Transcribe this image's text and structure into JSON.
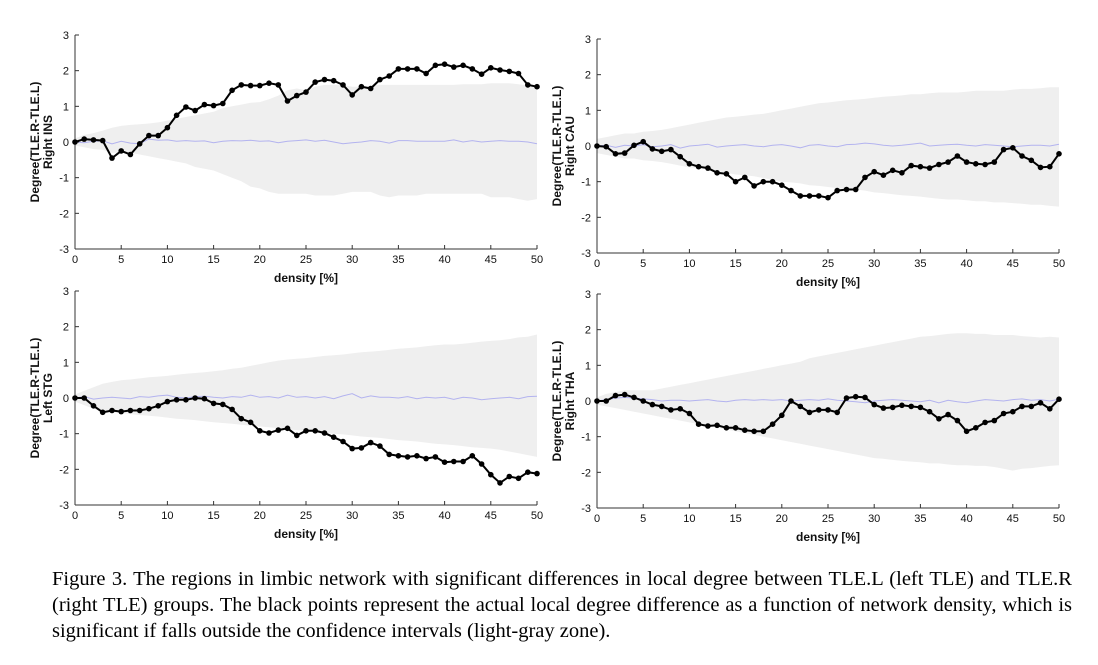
{
  "caption": "Figure 3. The regions in limbic network with significant differences in local degree between TLE.L (left TLE) and TLE.R (right TLE) groups. The black points represent the actual local degree difference as a function of network density, which is significant if falls outside the confidence intervals (light-gray zone).",
  "colors": {
    "ci_band": "#efefef",
    "null_line": "#b3b3ef",
    "observed": "#000000",
    "axis": "#333333"
  },
  "chart_data": [
    {
      "type": "line",
      "panel": "top-left",
      "region": "Right INS",
      "xlabel": "density [%]",
      "ylabel": "Degree(TLE.R-TLE.L)",
      "xlim": [
        0,
        50
      ],
      "ylim": [
        -3,
        3
      ],
      "xticks": [
        0,
        5,
        10,
        15,
        20,
        25,
        30,
        35,
        40,
        45,
        50
      ],
      "yticks": [
        -3,
        -2,
        -1,
        0,
        1,
        2,
        3
      ],
      "x": [
        0,
        1,
        2,
        3,
        4,
        5,
        6,
        7,
        8,
        9,
        10,
        11,
        12,
        13,
        14,
        15,
        16,
        17,
        18,
        19,
        20,
        21,
        22,
        23,
        24,
        25,
        26,
        27,
        28,
        29,
        30,
        31,
        32,
        33,
        34,
        35,
        36,
        37,
        38,
        39,
        40,
        41,
        42,
        43,
        44,
        45,
        46,
        47,
        48,
        49,
        50
      ],
      "observed": [
        0,
        0.08,
        0.06,
        0.04,
        -0.45,
        -0.25,
        -0.35,
        -0.05,
        0.18,
        0.18,
        0.4,
        0.75,
        0.98,
        0.88,
        1.05,
        1.02,
        1.08,
        1.45,
        1.6,
        1.58,
        1.58,
        1.65,
        1.6,
        1.15,
        1.3,
        1.4,
        1.68,
        1.75,
        1.72,
        1.6,
        1.32,
        1.55,
        1.5,
        1.75,
        1.85,
        2.05,
        2.05,
        2.05,
        1.92,
        2.15,
        2.18,
        2.1,
        2.15,
        2.05,
        1.9,
        2.08,
        2.02,
        1.98,
        1.92,
        1.6,
        1.55
      ],
      "null_mean": [
        0,
        -0.02,
        0.02,
        0.03,
        -0.05,
        0.02,
        -0.03,
        -0.05,
        0.08,
        0.05,
        0.06,
        0.02,
        0.04,
        0.02,
        0.03,
        -0.02,
        0.02,
        0.04,
        0.03,
        0.05,
        0.02,
        0.03,
        -0.02,
        0.02,
        0.04,
        0.06,
        0.02,
        0.05,
        0,
        -0.05,
        -0.02,
        0,
        0.04,
        0.02,
        -0.03,
        0.04,
        0.04,
        0.02,
        0.02,
        0.02,
        0.02,
        0.06,
        0,
        0.04,
        0,
        0.02,
        0.04,
        0.02,
        0.02,
        0,
        -0.05
      ],
      "ci_upper": [
        0.1,
        0.2,
        0.25,
        0.32,
        0.4,
        0.45,
        0.48,
        0.5,
        0.52,
        0.55,
        0.6,
        0.65,
        0.7,
        0.75,
        0.8,
        0.85,
        0.95,
        1,
        1.05,
        1.1,
        1.12,
        1.2,
        1.3,
        1.45,
        1.5,
        1.45,
        1.55,
        1.6,
        1.6,
        1.6,
        1.55,
        1.55,
        1.58,
        1.6,
        1.6,
        1.6,
        1.6,
        1.6,
        1.6,
        1.6,
        1.6,
        1.6,
        1.62,
        1.62,
        1.62,
        1.65,
        1.65,
        1.65,
        1.62,
        1.58,
        1.55
      ],
      "ci_lower": [
        -0.1,
        -0.15,
        -0.2,
        -0.22,
        -0.3,
        -0.3,
        -0.3,
        -0.35,
        -0.4,
        -0.45,
        -0.5,
        -0.55,
        -0.6,
        -0.7,
        -0.75,
        -0.8,
        -0.9,
        -1,
        -1.1,
        -1.25,
        -1.3,
        -1.4,
        -1.45,
        -1.45,
        -1.45,
        -1.45,
        -1.5,
        -1.5,
        -1.5,
        -1.45,
        -1.4,
        -1.4,
        -1.4,
        -1.5,
        -1.55,
        -1.5,
        -1.5,
        -1.5,
        -1.45,
        -1.45,
        -1.45,
        -1.45,
        -1.45,
        -1.45,
        -1.45,
        -1.55,
        -1.55,
        -1.55,
        -1.6,
        -1.65,
        -1.6
      ]
    },
    {
      "type": "line",
      "panel": "top-right",
      "region": "Right CAU",
      "xlabel": "density [%]",
      "ylabel": "Degree(TLE.R-TLE.L)",
      "xlim": [
        0,
        50
      ],
      "ylim": [
        -3,
        3
      ],
      "xticks": [
        0,
        5,
        10,
        15,
        20,
        25,
        30,
        35,
        40,
        45,
        50
      ],
      "yticks": [
        -3,
        -2,
        -1,
        0,
        1,
        2,
        3
      ],
      "x": [
        0,
        1,
        2,
        3,
        4,
        5,
        6,
        7,
        8,
        9,
        10,
        11,
        12,
        13,
        14,
        15,
        16,
        17,
        18,
        19,
        20,
        21,
        22,
        23,
        24,
        25,
        26,
        27,
        28,
        29,
        30,
        31,
        32,
        33,
        34,
        35,
        36,
        37,
        38,
        39,
        40,
        41,
        42,
        43,
        44,
        45,
        46,
        47,
        48,
        49,
        50
      ],
      "observed": [
        0,
        -0.02,
        -0.22,
        -0.2,
        0.02,
        0.12,
        -0.08,
        -0.15,
        -0.1,
        -0.3,
        -0.5,
        -0.58,
        -0.62,
        -0.75,
        -0.78,
        -1,
        -0.88,
        -1.12,
        -1,
        -1,
        -1.1,
        -1.25,
        -1.4,
        -1.4,
        -1.4,
        -1.45,
        -1.25,
        -1.22,
        -1.22,
        -0.88,
        -0.72,
        -0.82,
        -0.68,
        -0.75,
        -0.55,
        -0.58,
        -0.62,
        -0.52,
        -0.45,
        -0.28,
        -0.45,
        -0.5,
        -0.52,
        -0.45,
        -0.1,
        -0.05,
        -0.28,
        -0.4,
        -0.6,
        -0.58,
        -0.22
      ],
      "null_mean": [
        0,
        0.02,
        -0.04,
        0.02,
        0,
        0.04,
        -0.02,
        0,
        0.04,
        -0.06,
        0,
        0.02,
        0.05,
        -0.03,
        0,
        0.02,
        0.04,
        0,
        -0.02,
        0.02,
        0.04,
        0,
        -0.05,
        0.02,
        0.04,
        0,
        -0.02,
        0.04,
        0.05,
        0.08,
        0.06,
        0.02,
        0,
        0.02,
        0.05,
        0.08,
        0,
        0.02,
        0.04,
        0.05,
        0.02,
        0,
        0.04,
        0.02,
        0,
        -0.02,
        0,
        0.02,
        0.02,
        0,
        0.05
      ],
      "ci_upper": [
        0.2,
        0.25,
        0.3,
        0.35,
        0.35,
        0.4,
        0.42,
        0.45,
        0.5,
        0.55,
        0.6,
        0.65,
        0.7,
        0.75,
        0.8,
        0.82,
        0.85,
        0.88,
        0.9,
        0.95,
        1,
        1.05,
        1.1,
        1.15,
        1.2,
        1.22,
        1.25,
        1.28,
        1.3,
        1.32,
        1.35,
        1.38,
        1.4,
        1.42,
        1.45,
        1.45,
        1.48,
        1.5,
        1.5,
        1.5,
        1.52,
        1.55,
        1.55,
        1.55,
        1.55,
        1.58,
        1.6,
        1.6,
        1.62,
        1.65,
        1.65
      ],
      "ci_lower": [
        -0.2,
        -0.25,
        -0.3,
        -0.35,
        -0.35,
        -0.4,
        -0.42,
        -0.45,
        -0.5,
        -0.55,
        -0.6,
        -0.62,
        -0.65,
        -0.7,
        -0.75,
        -0.8,
        -0.82,
        -0.85,
        -0.9,
        -0.95,
        -1,
        -1.02,
        -1.05,
        -1.1,
        -1.12,
        -1.15,
        -1.18,
        -1.2,
        -1.22,
        -1.25,
        -1.3,
        -1.32,
        -1.35,
        -1.38,
        -1.4,
        -1.42,
        -1.45,
        -1.48,
        -1.5,
        -1.5,
        -1.52,
        -1.55,
        -1.55,
        -1.58,
        -1.58,
        -1.6,
        -1.62,
        -1.65,
        -1.65,
        -1.68,
        -1.7
      ]
    },
    {
      "type": "line",
      "panel": "bottom-left",
      "region": "Left STG",
      "xlabel": "density [%]",
      "ylabel": "Degree(TLE.R-TLE.L)",
      "xlim": [
        0,
        50
      ],
      "ylim": [
        -3,
        3
      ],
      "xticks": [
        0,
        5,
        10,
        15,
        20,
        25,
        30,
        35,
        40,
        45,
        50
      ],
      "yticks": [
        -3,
        -2,
        -1,
        0,
        1,
        2,
        3
      ],
      "x": [
        0,
        1,
        2,
        3,
        4,
        5,
        6,
        7,
        8,
        9,
        10,
        11,
        12,
        13,
        14,
        15,
        16,
        17,
        18,
        19,
        20,
        21,
        22,
        23,
        24,
        25,
        26,
        27,
        28,
        29,
        30,
        31,
        32,
        33,
        34,
        35,
        36,
        37,
        38,
        39,
        40,
        41,
        42,
        43,
        44,
        45,
        46,
        47,
        48,
        49,
        50
      ],
      "observed": [
        0,
        0,
        -0.22,
        -0.4,
        -0.35,
        -0.38,
        -0.35,
        -0.35,
        -0.3,
        -0.22,
        -0.1,
        -0.05,
        -0.05,
        0,
        -0.02,
        -0.15,
        -0.18,
        -0.32,
        -0.58,
        -0.68,
        -0.92,
        -0.98,
        -0.9,
        -0.85,
        -1.05,
        -0.92,
        -0.92,
        -0.98,
        -1.1,
        -1.22,
        -1.42,
        -1.4,
        -1.25,
        -1.35,
        -1.58,
        -1.62,
        -1.65,
        -1.62,
        -1.7,
        -1.65,
        -1.8,
        -1.78,
        -1.78,
        -1.62,
        -1.85,
        -2.15,
        -2.38,
        -2.2,
        -2.25,
        -2.08,
        -2.12
      ],
      "null_mean": [
        0,
        0.04,
        -0.03,
        0,
        0.02,
        0,
        -0.02,
        0.04,
        0.02,
        0.06,
        0.08,
        0.02,
        0,
        0.04,
        0.05,
        0.02,
        0,
        0.04,
        0.02,
        0.08,
        0.02,
        0.04,
        0,
        0.08,
        0.02,
        0.04,
        0,
        0.04,
        -0.02,
        0.06,
        0.12,
        0,
        0.06,
        0.02,
        0.02,
        0,
        0.04,
        -0.02,
        0.02,
        0,
        0.02,
        -0.04,
        0.02,
        0,
        -0.05,
        -0.02,
        0,
        0.02,
        -0.02,
        0.04,
        0.05
      ],
      "ci_upper": [
        0.1,
        0.2,
        0.3,
        0.4,
        0.45,
        0.5,
        0.52,
        0.55,
        0.58,
        0.6,
        0.62,
        0.65,
        0.68,
        0.7,
        0.72,
        0.75,
        0.78,
        0.82,
        0.85,
        0.9,
        0.95,
        1,
        1.05,
        1.08,
        1.1,
        1.12,
        1.15,
        1.18,
        1.2,
        1.22,
        1.25,
        1.28,
        1.3,
        1.32,
        1.35,
        1.38,
        1.4,
        1.42,
        1.45,
        1.48,
        1.5,
        1.5,
        1.52,
        1.55,
        1.58,
        1.6,
        1.62,
        1.65,
        1.7,
        1.72,
        1.78
      ],
      "ci_lower": [
        -0.1,
        -0.2,
        -0.3,
        -0.35,
        -0.4,
        -0.42,
        -0.45,
        -0.48,
        -0.5,
        -0.52,
        -0.55,
        -0.58,
        -0.6,
        -0.62,
        -0.65,
        -0.68,
        -0.7,
        -0.72,
        -0.75,
        -0.78,
        -0.8,
        -0.82,
        -0.85,
        -0.88,
        -0.9,
        -0.92,
        -0.95,
        -0.98,
        -1,
        -1.02,
        -1.05,
        -1.08,
        -1.1,
        -1.12,
        -1.15,
        -1.18,
        -1.2,
        -1.22,
        -1.25,
        -1.28,
        -1.3,
        -1.32,
        -1.35,
        -1.38,
        -1.4,
        -1.42,
        -1.45,
        -1.5,
        -1.55,
        -1.6,
        -1.65
      ]
    },
    {
      "type": "line",
      "panel": "bottom-right",
      "region": "Right THA",
      "xlabel": "density [%]",
      "ylabel": "Degree(TLE.R-TLE.L)",
      "xlim": [
        0,
        50
      ],
      "ylim": [
        -3,
        3
      ],
      "xticks": [
        0,
        5,
        10,
        15,
        20,
        25,
        30,
        35,
        40,
        45,
        50
      ],
      "yticks": [
        -3,
        -2,
        -1,
        0,
        1,
        2,
        3
      ],
      "x": [
        0,
        1,
        2,
        3,
        4,
        5,
        6,
        7,
        8,
        9,
        10,
        11,
        12,
        13,
        14,
        15,
        16,
        17,
        18,
        19,
        20,
        21,
        22,
        23,
        24,
        25,
        26,
        27,
        28,
        29,
        30,
        31,
        32,
        33,
        34,
        35,
        36,
        37,
        38,
        39,
        40,
        41,
        42,
        43,
        44,
        45,
        46,
        47,
        48,
        49,
        50
      ],
      "observed": [
        0,
        0,
        0.15,
        0.18,
        0.1,
        0,
        -0.1,
        -0.15,
        -0.25,
        -0.22,
        -0.35,
        -0.65,
        -0.7,
        -0.68,
        -0.75,
        -0.75,
        -0.82,
        -0.85,
        -0.85,
        -0.65,
        -0.4,
        0,
        -0.15,
        -0.32,
        -0.25,
        -0.25,
        -0.32,
        0.08,
        0.12,
        0.1,
        -0.1,
        -0.2,
        -0.18,
        -0.12,
        -0.15,
        -0.18,
        -0.3,
        -0.5,
        -0.38,
        -0.55,
        -0.85,
        -0.75,
        -0.6,
        -0.55,
        -0.35,
        -0.3,
        -0.15,
        -0.15,
        -0.05,
        -0.22,
        0.05
      ],
      "null_mean": [
        0,
        0.04,
        0.08,
        0.1,
        0.08,
        0.06,
        0.04,
        0,
        0.02,
        0.02,
        0,
        0.02,
        0.04,
        0,
        -0.02,
        0.02,
        0.04,
        0.02,
        0.04,
        0.02,
        0.04,
        0,
        0.02,
        0.04,
        0.02,
        0.06,
        0.02,
        0,
        -0.02,
        -0.05,
        0,
        0.02,
        0.04,
        0.02,
        0,
        -0.02,
        0.02,
        -0.05,
        0.02,
        -0.02,
        -0.05,
        0,
        0.04,
        0.02,
        0,
        0.04,
        0.06,
        0.02,
        0.04,
        0,
        0.05
      ],
      "ci_upper": [
        0.1,
        0.2,
        0.25,
        0.3,
        0.3,
        0.3,
        0.3,
        0.35,
        0.4,
        0.45,
        0.5,
        0.55,
        0.6,
        0.65,
        0.7,
        0.75,
        0.8,
        0.85,
        0.9,
        0.95,
        1,
        1.05,
        1.1,
        1.2,
        1.25,
        1.3,
        1.35,
        1.4,
        1.45,
        1.5,
        1.55,
        1.6,
        1.65,
        1.7,
        1.75,
        1.8,
        1.82,
        1.85,
        1.88,
        1.9,
        1.9,
        1.88,
        1.88,
        1.85,
        1.85,
        1.85,
        1.82,
        1.8,
        1.78,
        1.8,
        1.78
      ],
      "ci_lower": [
        -0.1,
        -0.15,
        -0.2,
        -0.25,
        -0.3,
        -0.35,
        -0.4,
        -0.45,
        -0.5,
        -0.55,
        -0.6,
        -0.65,
        -0.7,
        -0.75,
        -0.8,
        -0.85,
        -0.9,
        -0.95,
        -1,
        -1.05,
        -1.1,
        -1.15,
        -1.2,
        -1.25,
        -1.3,
        -1.35,
        -1.4,
        -1.45,
        -1.5,
        -1.55,
        -1.6,
        -1.62,
        -1.65,
        -1.68,
        -1.7,
        -1.72,
        -1.75,
        -1.75,
        -1.78,
        -1.8,
        -1.8,
        -1.82,
        -1.82,
        -1.85,
        -1.9,
        -1.95,
        -1.9,
        -1.88,
        -1.85,
        -1.82,
        -1.8
      ]
    }
  ]
}
